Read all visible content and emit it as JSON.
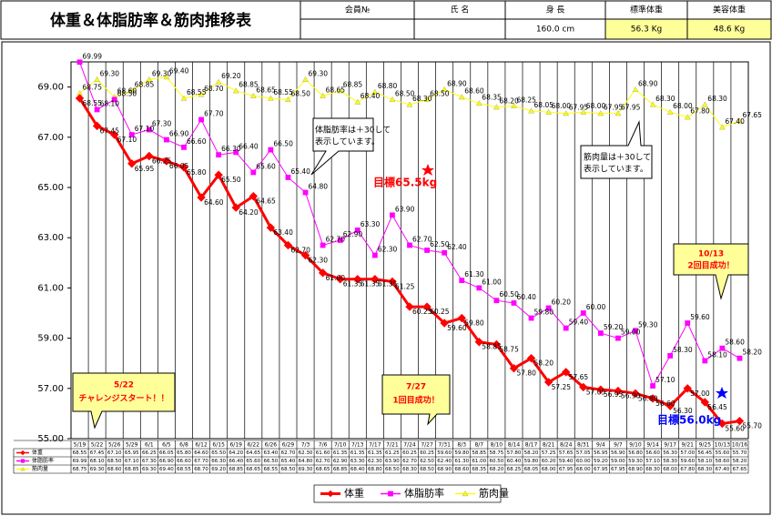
{
  "header": {
    "title": "体重＆体脂肪率＆筋肉推移表",
    "cells": [
      {
        "label": "会員№",
        "value": ""
      },
      {
        "label": "氏 名",
        "value": ""
      },
      {
        "label": "身 長",
        "value": "160.0 cm"
      },
      {
        "label": "標準体重",
        "value": "56.3 Kg"
      },
      {
        "label": "美容体重",
        "value": "48.6 Kg"
      }
    ]
  },
  "chart_data": {
    "type": "line",
    "categories": [
      "5/19",
      "5/22",
      "5/26",
      "5/29",
      "6/1",
      "6/5",
      "6/8",
      "6/12",
      "6/15",
      "6/19",
      "6/22",
      "6/26",
      "6/29",
      "7/3",
      "7/6",
      "7/10",
      "7/13",
      "7/17",
      "7/21",
      "7/24",
      "7/27",
      "7/31",
      "8/3",
      "8/7",
      "8/10",
      "8/14",
      "8/17",
      "8/21",
      "8/24",
      "8/31",
      "9/4",
      "9/7",
      "9/10",
      "9/14",
      "9/17",
      "9/21",
      "9/25",
      "10/13",
      "10/16"
    ],
    "ylim": [
      55,
      70
    ],
    "yticks": [
      {
        "value": 55,
        "label": "55.00"
      },
      {
        "value": 57,
        "label": "57.00"
      },
      {
        "value": 59,
        "label": "59.00"
      },
      {
        "value": 61,
        "label": "61.00"
      },
      {
        "value": 63,
        "label": "63.00"
      },
      {
        "value": 65,
        "label": "65.00"
      },
      {
        "value": 67,
        "label": "67.00"
      },
      {
        "value": 69,
        "label": "69.00"
      }
    ],
    "grid": "x",
    "legend": "bottom",
    "series": [
      {
        "name": "体重",
        "color": "#ff0000",
        "marker": "diamond",
        "values": [
          68.55,
          67.45,
          67.1,
          65.95,
          66.25,
          66.05,
          65.8,
          64.6,
          65.5,
          64.2,
          64.65,
          63.4,
          62.7,
          62.3,
          61.6,
          61.35,
          61.35,
          61.35,
          61.25,
          60.25,
          60.25,
          59.6,
          59.8,
          58.85,
          58.75,
          57.8,
          58.2,
          57.25,
          57.65,
          57.05,
          56.95,
          56.9,
          56.8,
          56.6,
          56.3,
          57,
          56.45,
          55.6,
          55.7
        ],
        "value_labels": [
          "68.55",
          "67.45",
          "67.10",
          "65.95",
          "66.25",
          "66.05",
          "65.80",
          "64.60",
          "65.50",
          "64.20",
          "64.65",
          "63.40",
          "62.70",
          "62.30",
          "61.60",
          "61.35",
          "61.35",
          "61.35",
          "61.25",
          "60.25",
          "60.25",
          "59.60",
          "59.80",
          "58.85",
          "58.75",
          "57.80",
          "58.20",
          "57.25",
          "57.65",
          "57.05",
          "56.95",
          "56.90",
          "56.80",
          "56.60",
          "56.30",
          "57.00",
          "56.45",
          "55.60",
          "55.70"
        ]
      },
      {
        "name": "体脂肪率",
        "color": "#ff00ff",
        "marker": "square",
        "values": [
          69.99,
          68.1,
          68.5,
          67.1,
          67.3,
          66.9,
          66.6,
          67.7,
          66.3,
          66.4,
          65.6,
          66.5,
          65.4,
          64.8,
          62.7,
          62.9,
          63.3,
          62.3,
          63.9,
          62.7,
          62.5,
          62.4,
          61.3,
          61,
          60.5,
          60.4,
          59.8,
          60.2,
          59.4,
          60,
          59.2,
          59,
          59.3,
          57.1,
          58.3,
          59.6,
          58.1,
          58.6,
          58.2
        ],
        "value_labels": [
          "69.99",
          "68.10",
          "68.50",
          "67.10",
          "67.30",
          "66.90",
          "66.60",
          "67.70",
          "66.30",
          "66.40",
          "65.60",
          "66.50",
          "65.40",
          "64.80",
          "62.70",
          "62.90",
          "63.30",
          "62.30",
          "63.90",
          "62.70",
          "62.50",
          "62.40",
          "61.30",
          "61.00",
          "60.50",
          "60.40",
          "59.80",
          "60.20",
          "59.40",
          "60.00",
          "59.20",
          "59.00",
          "59.30",
          "57.10",
          "58.30",
          "59.60",
          "58.10",
          "58.60",
          "58.20"
        ]
      },
      {
        "name": "筋肉量",
        "color": "#ffff00",
        "marker": "triangle",
        "values": [
          68.75,
          69.3,
          68.6,
          68.85,
          69.3,
          69.4,
          68.55,
          68.7,
          69.2,
          68.85,
          68.65,
          68.55,
          68.5,
          69.3,
          68.65,
          68.85,
          68.4,
          68.8,
          68.5,
          68.3,
          68.5,
          68.9,
          68.6,
          68.35,
          68.2,
          68.25,
          68.05,
          68,
          67.95,
          68,
          67.95,
          67.95,
          68.9,
          68.3,
          68,
          67.8,
          68.3,
          67.4,
          67.65
        ],
        "value_labels": [
          "68.75",
          "69.30",
          "68.60",
          "68.85",
          "69.30",
          "69.40",
          "68.55",
          "68.70",
          "69.20",
          "68.85",
          "68.65",
          "68.55",
          "68.50",
          "69.30",
          "68.65",
          "68.85",
          "68.40",
          "68.80",
          "68.50",
          "68.30",
          "68.50",
          "68.90",
          "68.60",
          "68.35",
          "68.20",
          "68.25",
          "68.05",
          "68.00",
          "67.95",
          "68.00",
          "67.95",
          "67.95",
          "68.90",
          "68.30",
          "68.00",
          "67.80",
          "68.30",
          "67.40",
          "67.65"
        ]
      }
    ],
    "annotations": {
      "fat_note": [
        "体脂肪率は＋30して",
        "表示しています。"
      ],
      "muscle_note": [
        "筋肉量は＋30して",
        "表示しています。"
      ],
      "goals": [
        "目標65.5kg",
        "目標56.0kg"
      ],
      "milestones": [
        [
          "5/22",
          "チャレンジスタート！！"
        ],
        [
          "7/27",
          "1回目成功！"
        ],
        [
          "10/13",
          "2回目成功！"
        ]
      ]
    }
  }
}
